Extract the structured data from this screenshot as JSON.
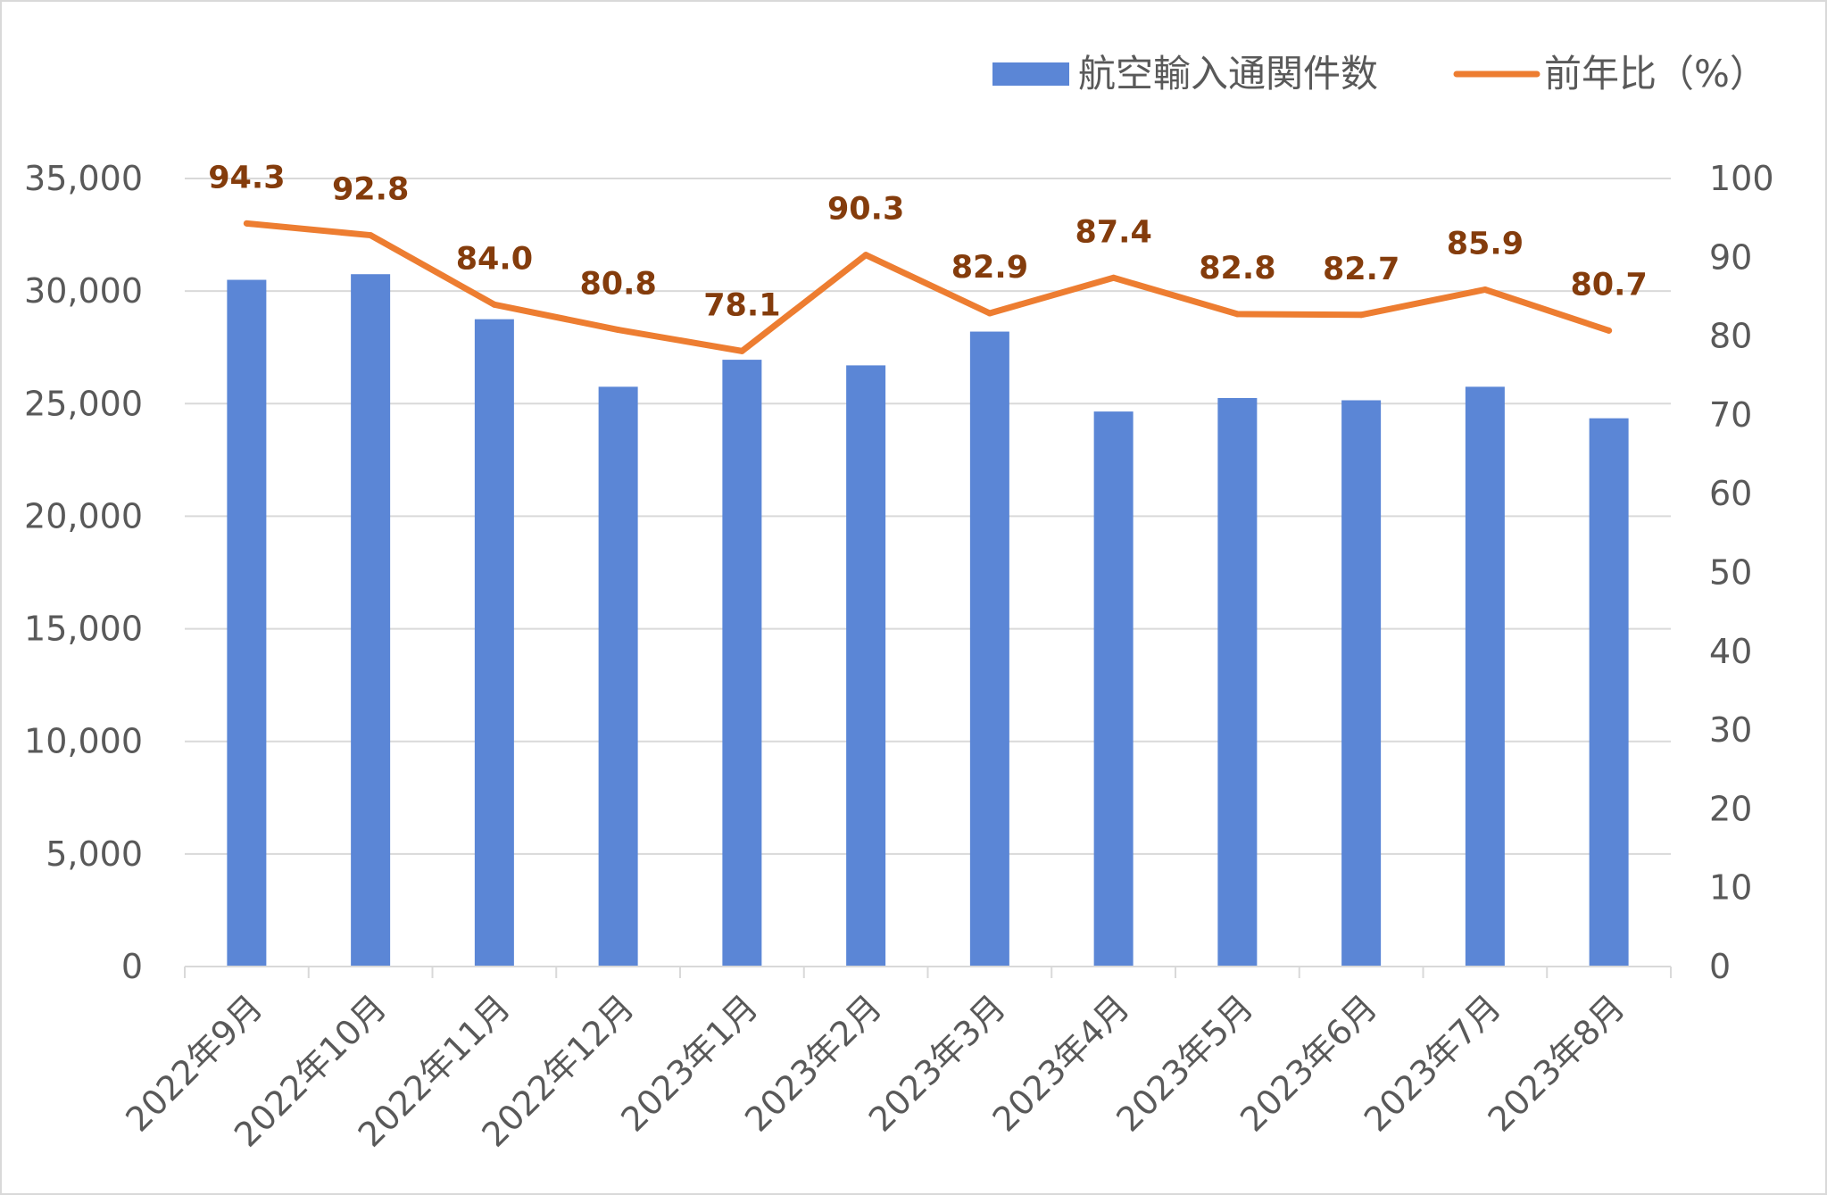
{
  "chart_data": {
    "type": "bar",
    "categories": [
      "2022年9月",
      "2022年10月",
      "2022年11月",
      "2022年12月",
      "2023年1月",
      "2023年2月",
      "2023年3月",
      "2023年4月",
      "2023年5月",
      "2023年6月",
      "2023年7月",
      "2023年8月"
    ],
    "series": [
      {
        "name": "航空輸入通関件数",
        "type": "bar",
        "axis": "left",
        "color": "#5B86D6",
        "values": [
          30500,
          30750,
          28750,
          25750,
          26950,
          26700,
          28200,
          24650,
          25250,
          25150,
          25750,
          24350
        ]
      },
      {
        "name": "前年比（%）",
        "type": "line",
        "axis": "right",
        "color": "#ED7D31",
        "values": [
          94.3,
          92.8,
          84.0,
          80.8,
          78.1,
          90.3,
          82.9,
          87.4,
          82.8,
          82.7,
          85.9,
          80.7
        ],
        "labels": [
          "94.3",
          "92.8",
          "84.0",
          "80.8",
          "78.1",
          "90.3",
          "82.9",
          "87.4",
          "82.8",
          "82.7",
          "85.9",
          "80.7"
        ],
        "label_color": "#843C0C"
      }
    ],
    "y_left": {
      "ylim": [
        0,
        35000
      ],
      "ticks": [
        0,
        5000,
        10000,
        15000,
        20000,
        25000,
        30000,
        35000
      ],
      "tick_labels": [
        "0",
        "5,000",
        "10,000",
        "15,000",
        "20,000",
        "25,000",
        "30,000",
        "35,000"
      ]
    },
    "y_right": {
      "ylim": [
        0,
        100
      ],
      "ticks": [
        0,
        10,
        20,
        30,
        40,
        50,
        60,
        70,
        80,
        90,
        100
      ],
      "tick_labels": [
        "0",
        "10",
        "20",
        "30",
        "40",
        "50",
        "60",
        "70",
        "80",
        "90",
        "100"
      ]
    },
    "grid": true,
    "legend_position": "top-right",
    "title": "",
    "xlabel": "",
    "ylabel": ""
  }
}
